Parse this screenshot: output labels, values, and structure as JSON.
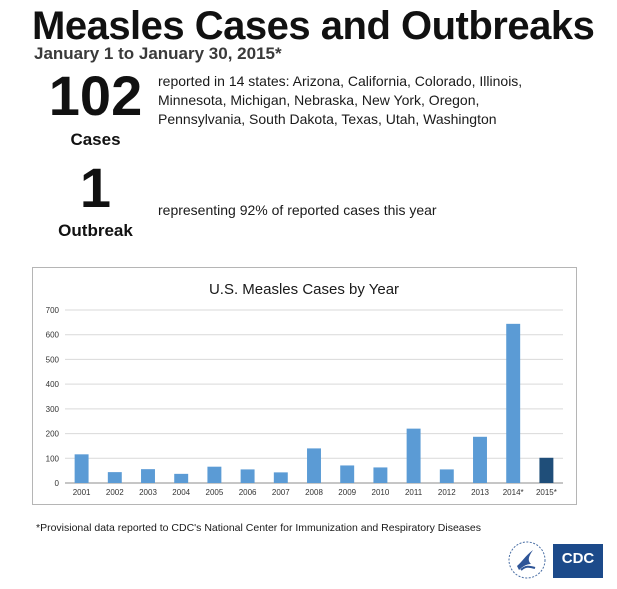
{
  "header": {
    "title": "Measles Cases and Outbreaks",
    "subtitle": "January 1 to January 30, 2015*"
  },
  "stats": {
    "cases": {
      "number": "102",
      "label": "Cases",
      "description": "reported in 14 states: Arizona, California, Colorado, Illinois, Minnesota, Michigan, Nebraska, New York, Oregon, Pennsylvania, South Dakota, Texas, Utah, Washington"
    },
    "outbreak": {
      "number": "1",
      "label": "Outbreak",
      "description": "representing 92% of reported cases this year"
    }
  },
  "chart_data": {
    "type": "bar",
    "title": "U.S. Measles Cases by Year",
    "xlabel": "",
    "ylabel": "",
    "categories": [
      "2001",
      "2002",
      "2003",
      "2004",
      "2005",
      "2006",
      "2007",
      "2008",
      "2009",
      "2010",
      "2011",
      "2012",
      "2013",
      "2014*",
      "2015*"
    ],
    "values": [
      116,
      44,
      56,
      37,
      66,
      55,
      43,
      140,
      71,
      63,
      220,
      55,
      187,
      644,
      102
    ],
    "ylim": [
      0,
      700
    ],
    "yticks": [
      0,
      100,
      200,
      300,
      400,
      500,
      600,
      700
    ],
    "grid": true,
    "colors": {
      "bar": "#5b9bd5",
      "highlight": "#1f4e79",
      "grid": "#d9d9d9",
      "axis": "#8c8c8c"
    },
    "highlight_index": 14
  },
  "footnote": "*Provisional data reported to CDC's National Center for Immunization and Respiratory Diseases",
  "logos": {
    "hhs": "hhs-eagle-icon",
    "cdc": "CDC"
  }
}
